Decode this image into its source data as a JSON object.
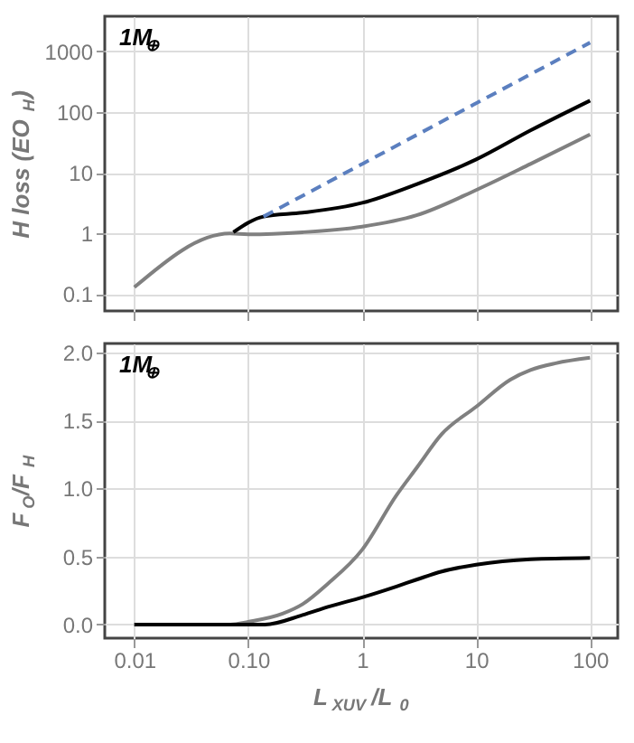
{
  "chart_data": [
    {
      "type": "line",
      "ylabel": "H loss (EO$_{H}$)",
      "annotations": [
        "1M$_{⊕}$"
      ],
      "log": "xy",
      "grid": true,
      "tick_labels": "y",
      "xlim": [
        0.0055,
        175
      ],
      "ylim": [
        0.053,
        3800
      ],
      "xticks": [
        0.01,
        0.1,
        1,
        10,
        100
      ],
      "yticks": [
        0.1,
        1,
        10,
        100,
        1000
      ],
      "series": [
        {
          "color": "#808080",
          "line_style": "solid",
          "x": [
            0.01,
            0.069,
            0.1,
            0.3,
            1,
            3,
            10,
            30,
            100
          ],
          "values": [
            0.13,
            1,
            0.97,
            1.05,
            1.3,
            2,
            5.2,
            14,
            43
          ]
        },
        {
          "color": "#000000",
          "line_style": "solid",
          "x": [
            0.074,
            0.136,
            0.3,
            1,
            3,
            10,
            30,
            100
          ],
          "values": [
            1.05,
            1.9,
            2.2,
            3.2,
            6.5,
            16.6,
            50,
            155
          ]
        },
        {
          "color": "#5b7fbf",
          "line_style": "dashed",
          "x": [
            0.136,
            1,
            10,
            100
          ],
          "values": [
            1.9,
            14,
            140,
            1400
          ]
        }
      ]
    },
    {
      "type": "line",
      "xlabel": "L$_{XUV}$/L$_{0}$",
      "ylabel": "F$_{O}$/F$_{H}$",
      "annotations": [
        "1M$_{⊕}$"
      ],
      "log": "x",
      "grid": true,
      "xlim": [
        0.0055,
        175
      ],
      "ylim": [
        -0.1,
        2.065
      ],
      "xticks": [
        0.01,
        {
          "value": 0.1,
          "label": "0.10"
        },
        1,
        10,
        100
      ],
      "yticks": [
        {
          "value": 0,
          "label": "0.0"
        },
        0.5,
        {
          "value": 1,
          "label": "1.0"
        },
        1.5,
        {
          "value": 2,
          "label": "2.0"
        }
      ],
      "series": [
        {
          "color": "#808080",
          "line_style": "solid",
          "x": [
            0.01,
            0.07,
            0.1,
            0.2,
            0.3,
            0.5,
            1,
            2,
            3,
            5,
            10,
            20,
            30,
            50,
            100
          ],
          "values": [
            0,
            0,
            0.02,
            0.08,
            0.15,
            0.3,
            0.55,
            0.95,
            1.15,
            1.4,
            1.6,
            1.8,
            1.87,
            1.92,
            1.96
          ]
        },
        {
          "color": "#000000",
          "line_style": "solid",
          "x": [
            0.01,
            0.14,
            0.3,
            0.5,
            1,
            2,
            3,
            5,
            10,
            30,
            100
          ],
          "values": [
            0,
            0,
            0.07,
            0.13,
            0.2,
            0.28,
            0.33,
            0.39,
            0.44,
            0.48,
            0.49
          ]
        }
      ]
    }
  ]
}
